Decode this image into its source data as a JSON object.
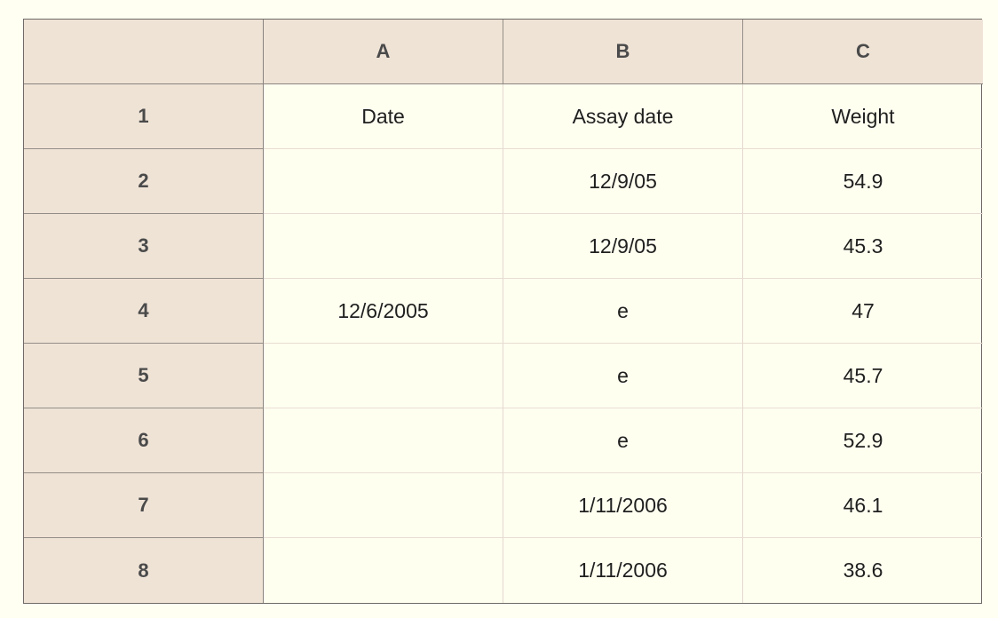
{
  "columns": [
    "A",
    "B",
    "C"
  ],
  "rows": [
    {
      "label": "1",
      "cells": [
        "Date",
        "Assay date",
        "Weight"
      ]
    },
    {
      "label": "2",
      "cells": [
        "",
        "12/9/05",
        "54.9"
      ]
    },
    {
      "label": "3",
      "cells": [
        "",
        "12/9/05",
        "45.3"
      ]
    },
    {
      "label": "4",
      "cells": [
        "12/6/2005",
        "e",
        "47"
      ]
    },
    {
      "label": "5",
      "cells": [
        "",
        "e",
        "45.7"
      ]
    },
    {
      "label": "6",
      "cells": [
        "",
        "e",
        "52.9"
      ]
    },
    {
      "label": "7",
      "cells": [
        "",
        "1/11/2006",
        "46.1"
      ]
    },
    {
      "label": "8",
      "cells": [
        "",
        "1/11/2006",
        "38.6"
      ]
    }
  ],
  "colors": {
    "header_bg": "#efe3d6",
    "cell_bg": "#fffff0",
    "page_bg": "#fffff2"
  }
}
